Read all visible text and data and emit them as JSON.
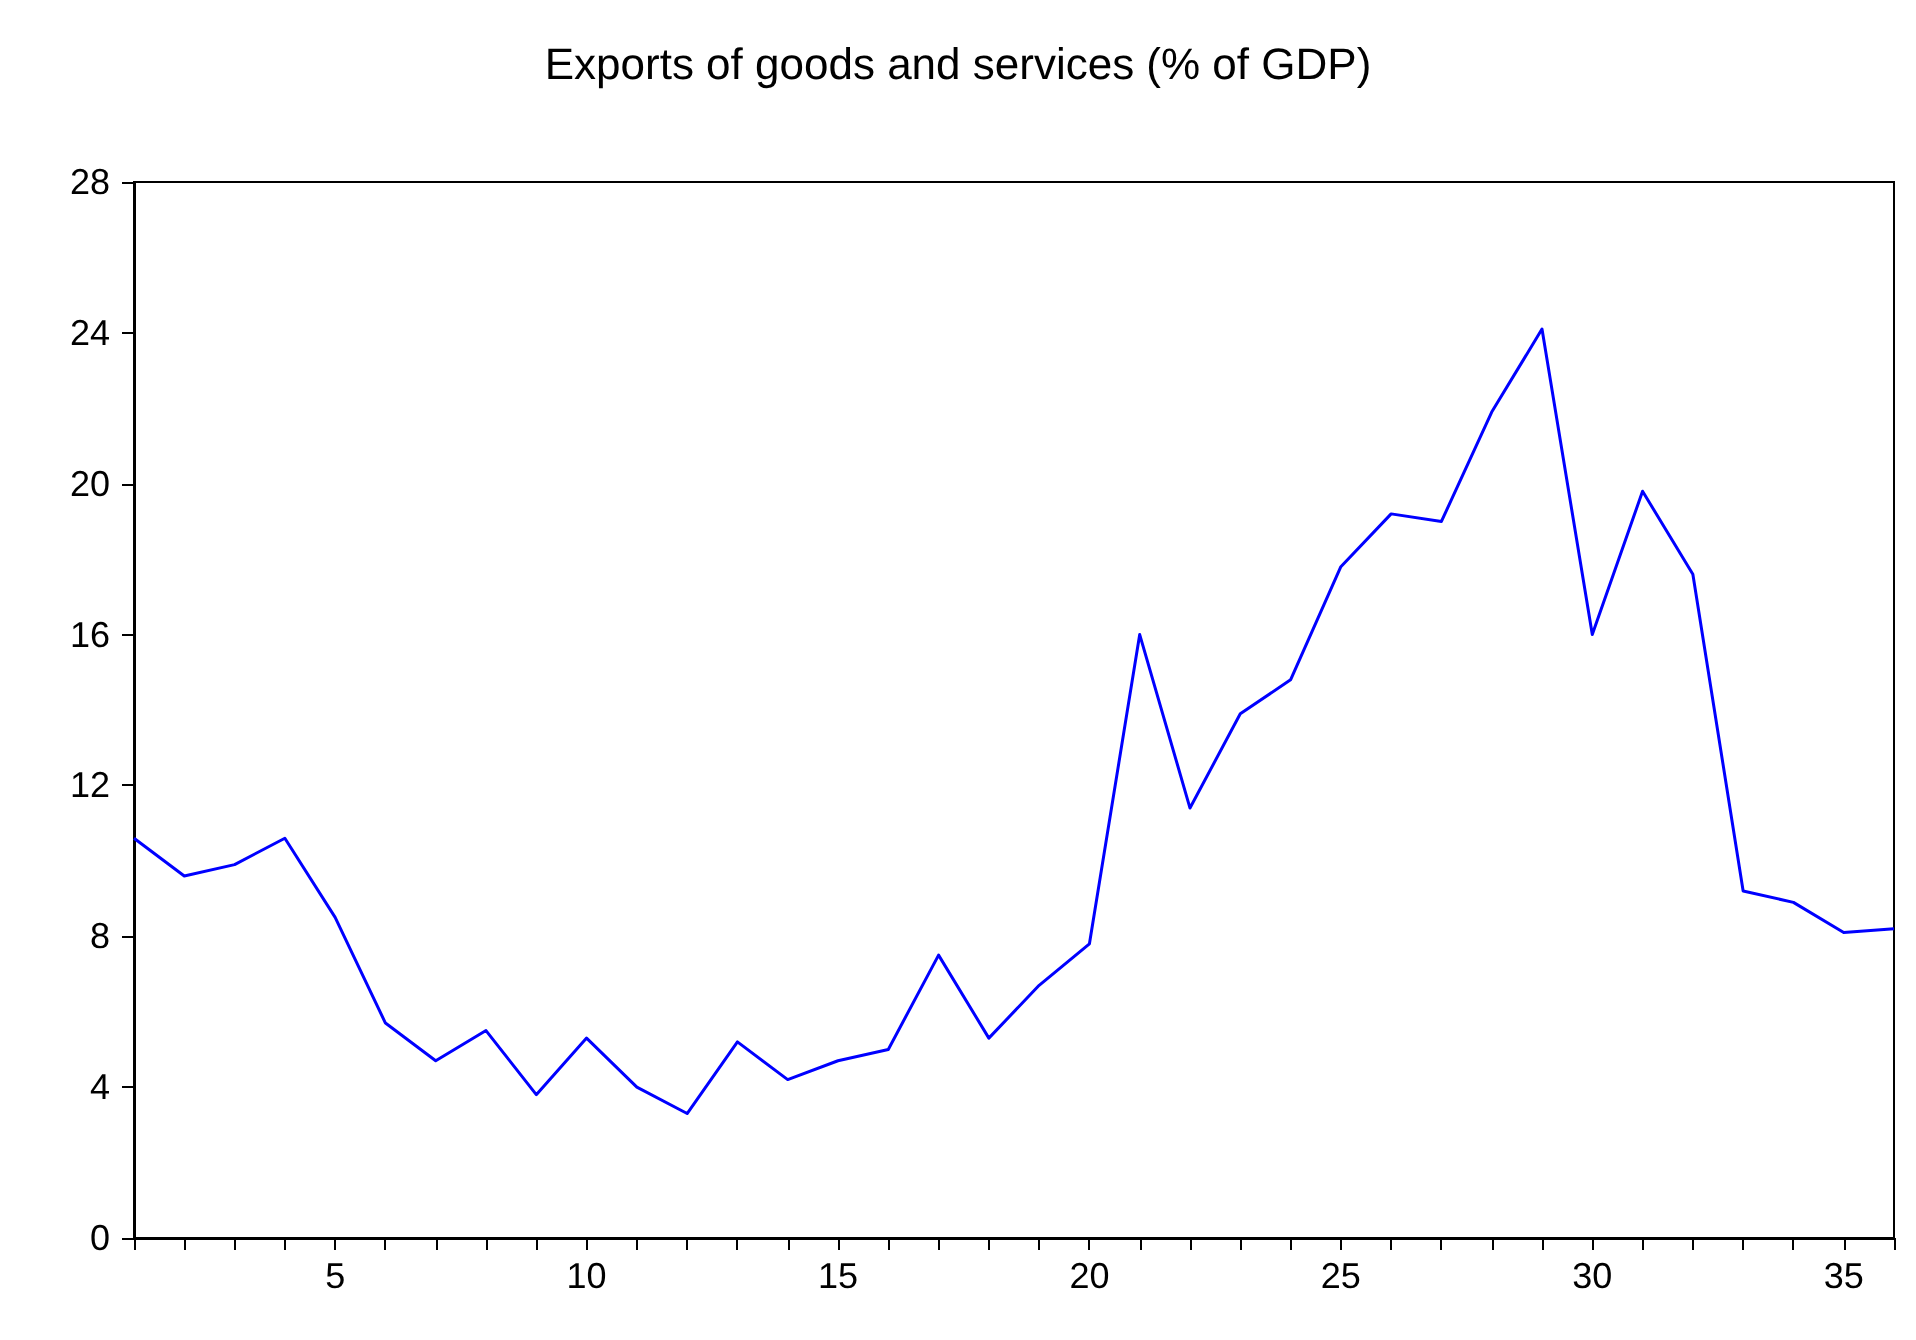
{
  "chart_data": {
    "type": "line",
    "title": "Exports of goods and services (% of GDP)",
    "x": [
      1,
      2,
      3,
      4,
      5,
      6,
      7,
      8,
      9,
      10,
      11,
      12,
      13,
      14,
      15,
      16,
      17,
      18,
      19,
      20,
      21,
      22,
      23,
      24,
      25,
      26,
      27,
      28,
      29,
      30,
      31,
      32,
      33,
      34,
      35,
      36
    ],
    "series": [
      {
        "color": "#0000ff",
        "values": [
          10.6,
          9.6,
          9.9,
          10.6,
          8.5,
          5.7,
          4.7,
          5.5,
          3.8,
          5.3,
          4.0,
          3.3,
          5.2,
          4.2,
          4.7,
          5.0,
          7.5,
          5.3,
          6.7,
          7.8,
          16.0,
          11.4,
          13.9,
          14.8,
          17.8,
          19.2,
          19.0,
          21.9,
          24.1,
          16.0,
          19.8,
          17.6,
          9.2,
          8.9,
          8.1,
          8.2
        ]
      }
    ],
    "xlim": [
      1,
      36
    ],
    "xticks": [
      {
        "value": 1,
        "label": null
      },
      {
        "value": 2,
        "label": null
      },
      {
        "value": 3,
        "label": null
      },
      {
        "value": 4,
        "label": null
      },
      5,
      {
        "value": 6,
        "label": null
      },
      {
        "value": 7,
        "label": null
      },
      {
        "value": 8,
        "label": null
      },
      {
        "value": 9,
        "label": null
      },
      10,
      {
        "value": 11,
        "label": null
      },
      {
        "value": 12,
        "label": null
      },
      {
        "value": 13,
        "label": null
      },
      {
        "value": 14,
        "label": null
      },
      15,
      {
        "value": 16,
        "label": null
      },
      {
        "value": 17,
        "label": null
      },
      {
        "value": 18,
        "label": null
      },
      {
        "value": 19,
        "label": null
      },
      20,
      {
        "value": 21,
        "label": null
      },
      {
        "value": 22,
        "label": null
      },
      {
        "value": 23,
        "label": null
      },
      {
        "value": 24,
        "label": null
      },
      25,
      {
        "value": 26,
        "label": null
      },
      {
        "value": 27,
        "label": null
      },
      {
        "value": 28,
        "label": null
      },
      {
        "value": 29,
        "label": null
      },
      30,
      {
        "value": 31,
        "label": null
      },
      {
        "value": 32,
        "label": null
      },
      {
        "value": 33,
        "label": null
      },
      {
        "value": 34,
        "label": null
      },
      35,
      {
        "value": 36,
        "label": null
      }
    ],
    "ylim": [
      0,
      28
    ],
    "yticks": [
      0,
      4,
      8,
      12,
      16,
      20,
      24,
      28
    ],
    "grid": false,
    "marker": "none",
    "line_style": "solid"
  }
}
